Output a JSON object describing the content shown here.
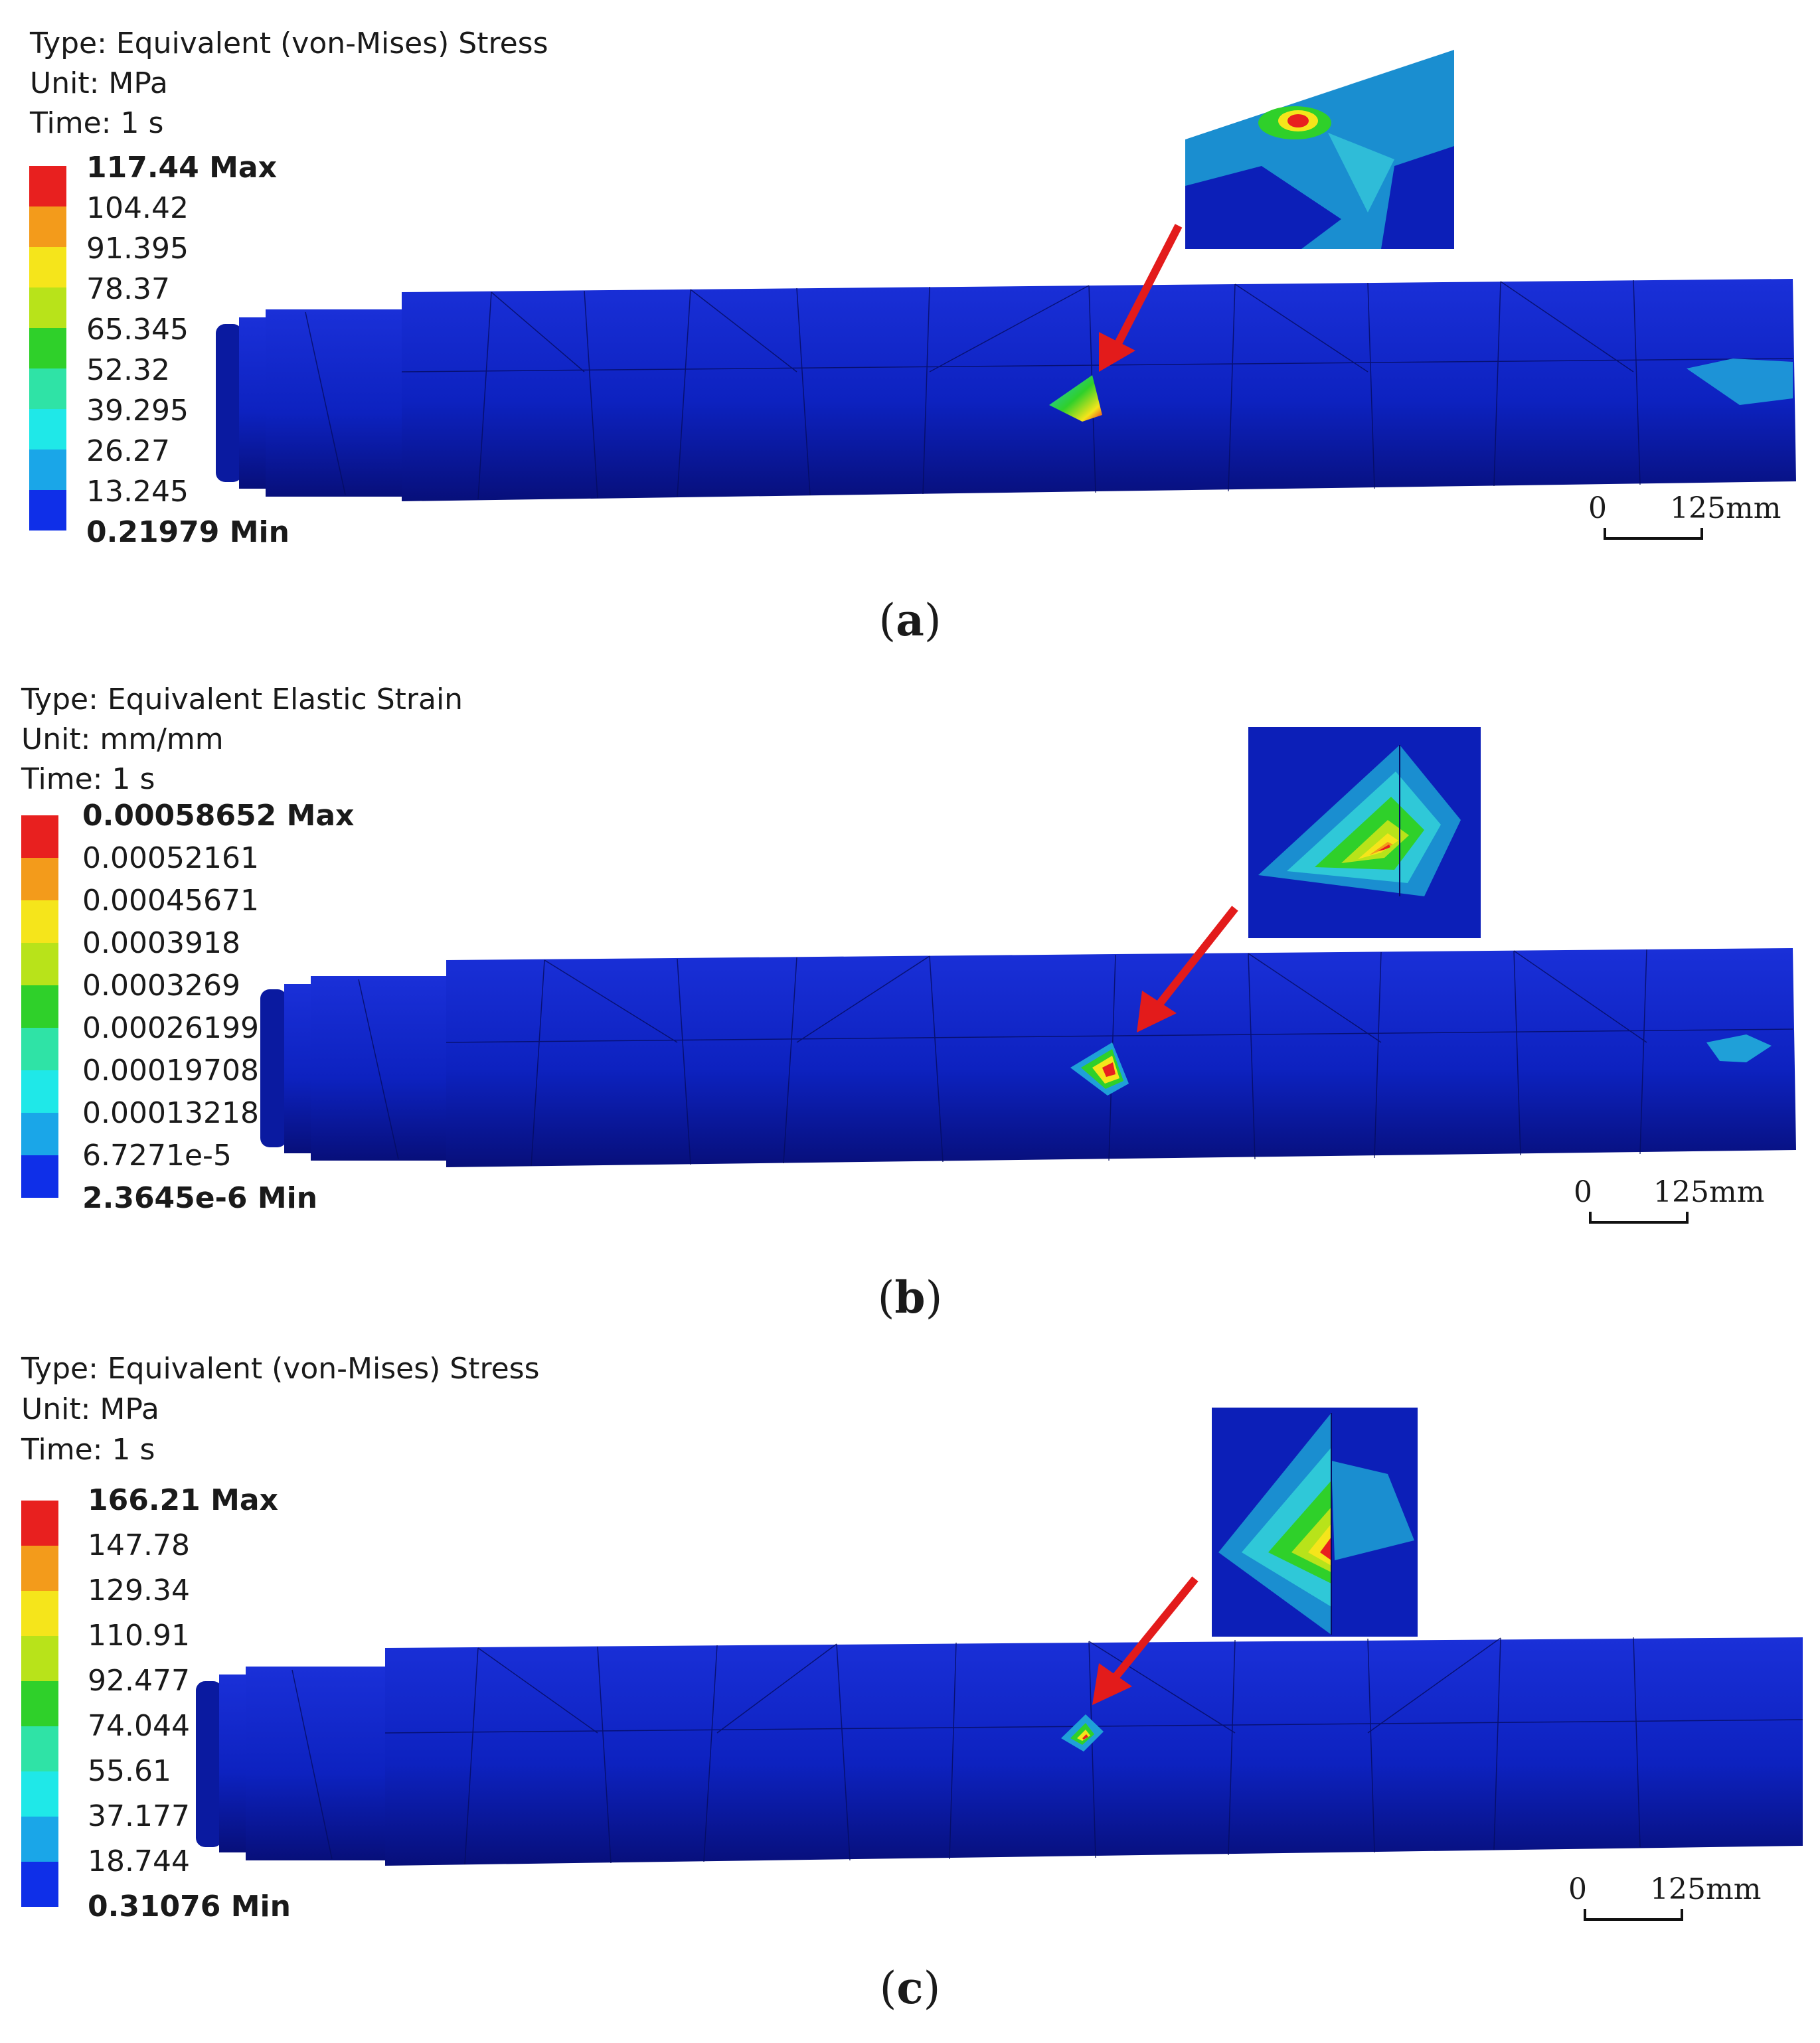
{
  "panels": [
    {
      "id": "a",
      "caption_open": "(",
      "caption_letter": "a",
      "caption_close": ")",
      "type_line": "Type: Equivalent (von-Mises) Stress",
      "unit_line": "Unit: MPa",
      "time_line": "Time: 1 s",
      "legend_labels": [
        "117.44 Max",
        "104.42",
        "91.395",
        "78.37",
        "65.345",
        "52.32",
        "39.295",
        "26.27",
        "13.245",
        "0.21979 Min"
      ],
      "scale_zero": "0",
      "scale_length": "125mm"
    },
    {
      "id": "b",
      "caption_open": "(",
      "caption_letter": "b",
      "caption_close": ")",
      "type_line": "Type: Equivalent Elastic Strain",
      "unit_line": "Unit: mm/mm",
      "time_line": "Time: 1 s",
      "legend_labels": [
        "0.00058652 Max",
        "0.00052161",
        "0.00045671",
        "0.0003918",
        "0.0003269",
        "0.00026199",
        "0.00019708",
        "0.00013218",
        "6.7271e-5",
        "2.3645e-6 Min"
      ],
      "scale_zero": "0",
      "scale_length": "125mm"
    },
    {
      "id": "c",
      "caption_open": "(",
      "caption_letter": "c",
      "caption_close": ")",
      "type_line": "Type: Equivalent (von-Mises) Stress",
      "unit_line": "Unit: MPa",
      "time_line": "Time: 1 s",
      "legend_labels": [
        "166.21 Max",
        "147.78",
        "129.34",
        "110.91",
        "92.477",
        "74.044",
        "55.61",
        "37.177",
        "18.744",
        "0.31076 Min"
      ],
      "scale_zero": "0",
      "scale_length": "125mm"
    }
  ],
  "legend_colors": [
    "#e8201f",
    "#f39b1b",
    "#f5e51b",
    "#b8e31a",
    "#2fd02a",
    "#2fe3a6",
    "#1fe8e8",
    "#1aa6e8",
    "#0f2fe8"
  ],
  "shaft_color": "#0c1fb8",
  "arrow_color": "#e31b1b"
}
